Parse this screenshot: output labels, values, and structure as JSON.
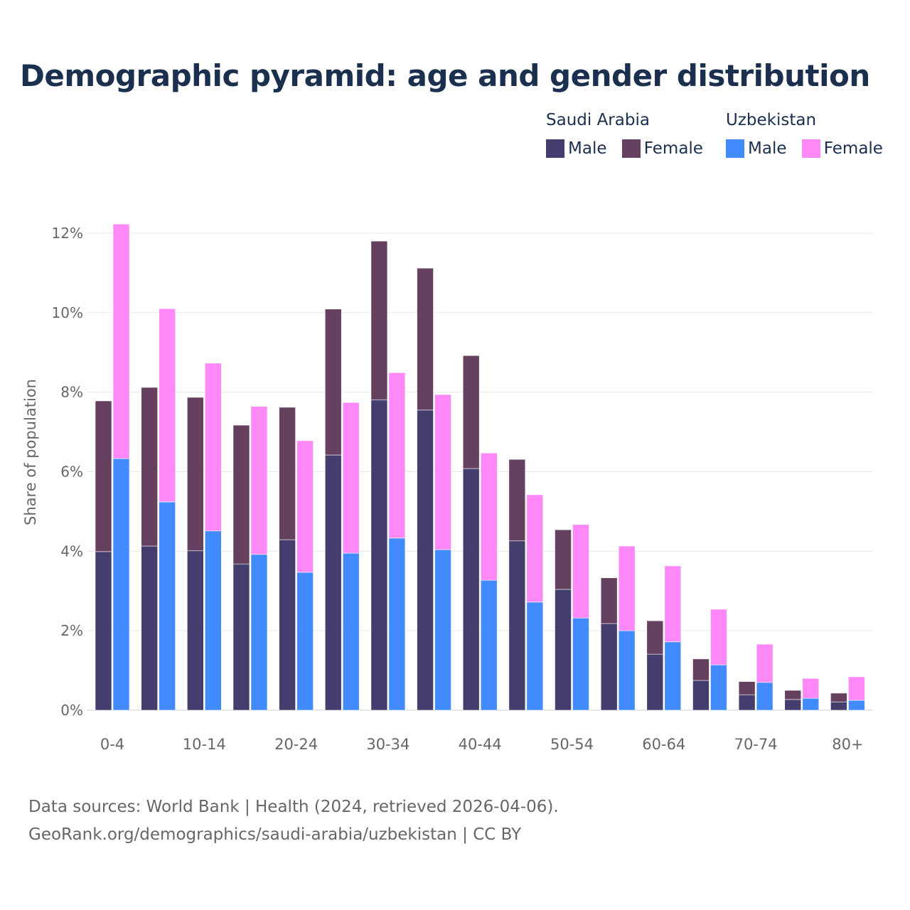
{
  "chart_data": {
    "type": "bar",
    "title": "Demographic pyramid: age and gender distribution",
    "ylabel": "Share of population",
    "xlabel": "",
    "ylim": [
      0,
      12.3
    ],
    "yticks": [
      0,
      2,
      4,
      6,
      8,
      10,
      12
    ],
    "ytick_labels": [
      "0%",
      "2%",
      "4%",
      "6%",
      "8%",
      "10%",
      "12%"
    ],
    "grid": true,
    "legend_position": "top-right",
    "categories": [
      "0-4",
      "5-9",
      "10-14",
      "15-19",
      "20-24",
      "25-29",
      "30-34",
      "35-39",
      "40-44",
      "45-49",
      "50-54",
      "55-59",
      "60-64",
      "65-69",
      "70-74",
      "75-79",
      "80+"
    ],
    "xtick_labels": [
      "0-4",
      "",
      "10-14",
      "",
      "20-24",
      "",
      "30-34",
      "",
      "40-44",
      "",
      "50-54",
      "",
      "60-64",
      "",
      "70-74",
      "",
      "80+"
    ],
    "countries": [
      {
        "name": "Saudi Arabia",
        "series": [
          {
            "name": "Male",
            "color": "#433e6e",
            "values": [
              3.99,
              4.13,
              4.01,
              3.68,
              4.29,
              6.42,
              7.81,
              7.55,
              6.08,
              4.26,
              3.04,
              2.18,
              1.41,
              0.75,
              0.39,
              0.27,
              0.21
            ]
          },
          {
            "name": "Female",
            "color": "#65405f",
            "values": [
              3.79,
              3.99,
              3.86,
              3.49,
              3.33,
              3.67,
              3.99,
              3.57,
              2.84,
              2.05,
              1.5,
              1.15,
              0.84,
              0.54,
              0.33,
              0.23,
              0.22
            ]
          }
        ]
      },
      {
        "name": "Uzbekistan",
        "series": [
          {
            "name": "Male",
            "color": "#428bff",
            "values": [
              6.33,
              5.24,
              4.51,
              3.92,
              3.47,
              3.95,
              4.33,
              4.04,
              3.27,
              2.72,
              2.32,
              2.0,
              1.72,
              1.14,
              0.7,
              0.3,
              0.25
            ]
          },
          {
            "name": "Female",
            "color": "#ff88f8",
            "values": [
              5.9,
              4.86,
              4.22,
              3.72,
              3.31,
              3.79,
              4.16,
              3.9,
              3.2,
              2.7,
              2.35,
              2.13,
              1.91,
              1.4,
              0.96,
              0.5,
              0.59
            ]
          }
        ]
      }
    ]
  },
  "footer": {
    "line1": "Data sources: World Bank | Health (2024, retrieved 2026-04-06).",
    "line2": "GeoRank.org/demographics/saudi-arabia/uzbekistan | CC BY"
  }
}
